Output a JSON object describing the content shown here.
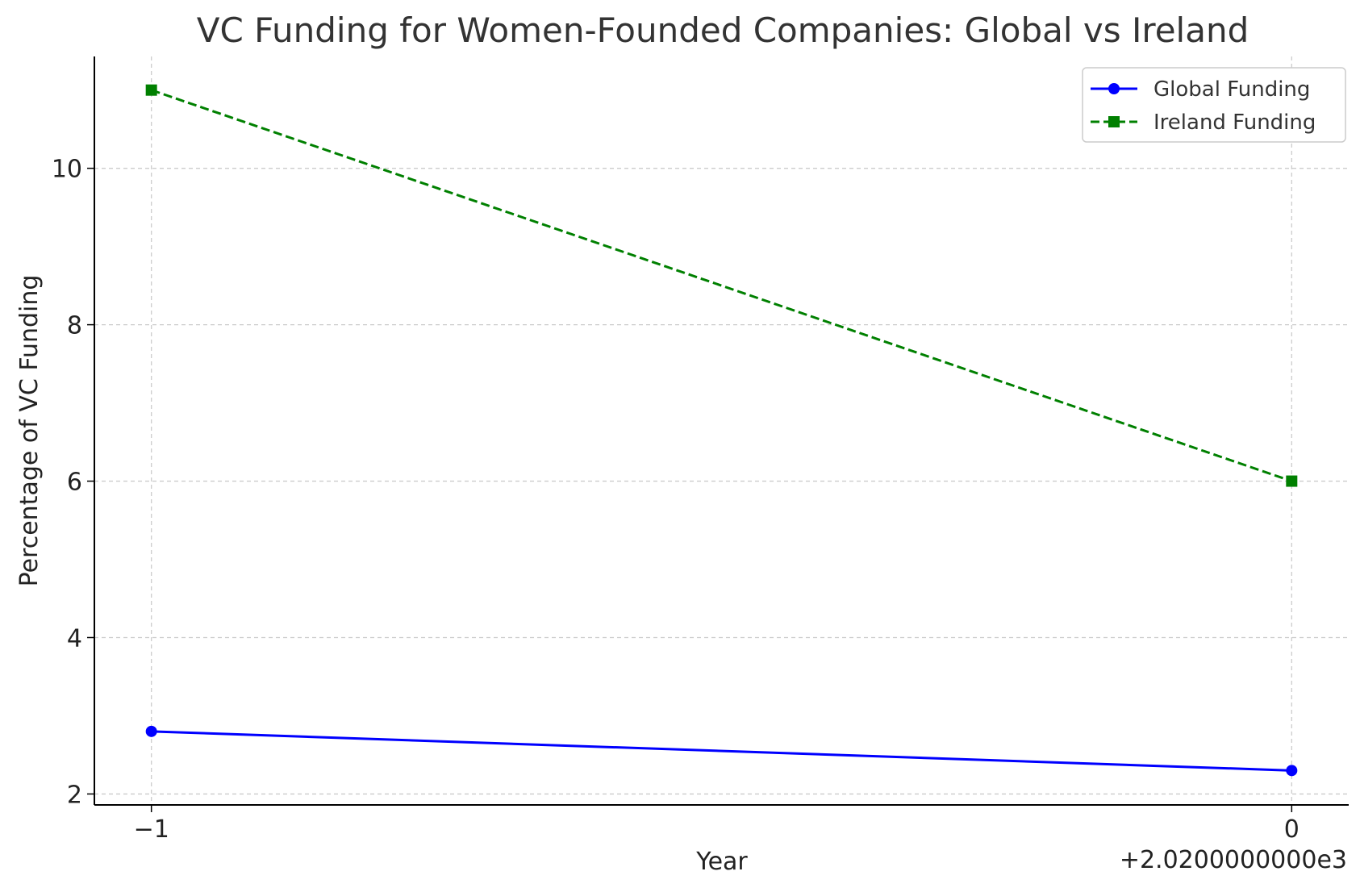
{
  "chart_data": {
    "type": "line",
    "title": "VC Funding for Women-Founded Companies: Global vs Ireland",
    "xlabel": "Year",
    "ylabel": "Percentage of VC Funding",
    "x_offset_label": "+2.0200000000e3",
    "x": [
      2019,
      2020
    ],
    "x_tick_labels": [
      "−1",
      "0"
    ],
    "y_ticks": [
      2,
      4,
      6,
      8,
      10
    ],
    "xlim": [
      2018.95,
      2020.05
    ],
    "ylim": [
      1.86,
      11.43
    ],
    "grid": true,
    "legend_position": "top-right",
    "series": [
      {
        "name": "Global Funding",
        "values": [
          2.8,
          2.3
        ],
        "color": "#0000ff",
        "marker": "circle",
        "line_style": "solid"
      },
      {
        "name": "Ireland Funding",
        "values": [
          11.0,
          6.0
        ],
        "color": "#008000",
        "marker": "square",
        "line_style": "dashed"
      }
    ]
  }
}
